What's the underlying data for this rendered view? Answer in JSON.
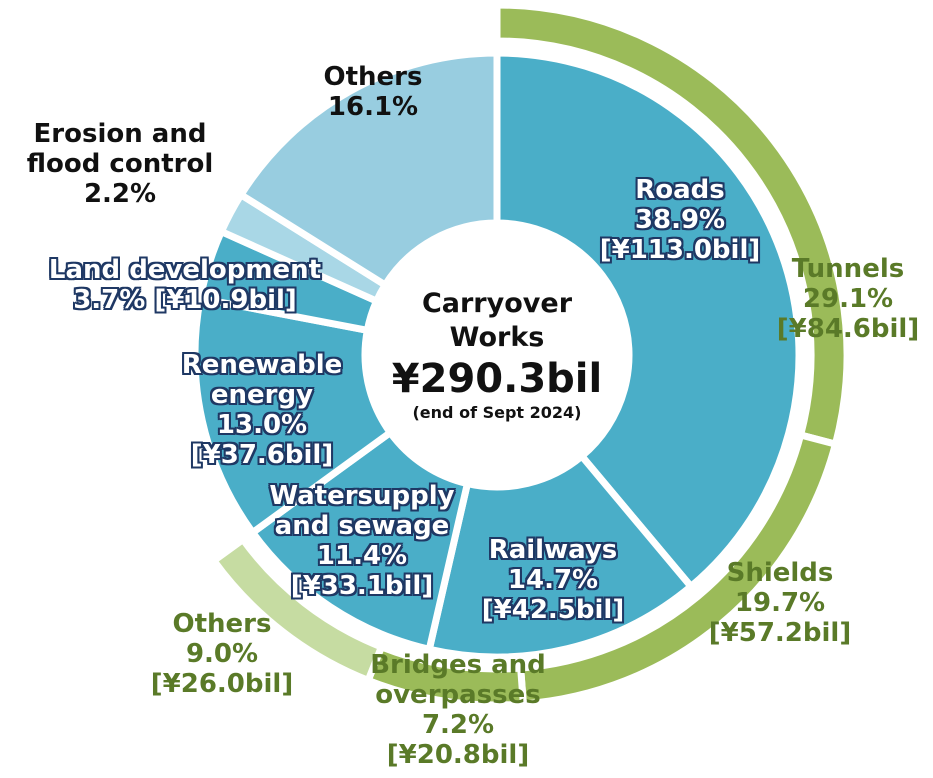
{
  "chart_data": {
    "type": "donut",
    "center_title": "Carryover Works",
    "center_value": "¥290.3bil",
    "center_note": "(end of Sept 2024)",
    "rings": [
      {
        "categories": [
          "Roads",
          "Railways",
          "Watersupply and sewage",
          "Renewable energy",
          "Land development",
          "Erosion and flood control",
          "Others"
        ],
        "values": [
          38.9,
          14.7,
          11.4,
          13.0,
          3.7,
          2.2,
          16.1
        ],
        "value_labels": [
          "38.9%",
          "14.7%",
          "11.4%",
          "13.0%",
          "3.7%",
          "2.2%",
          "16.1%"
        ],
        "amounts": [
          "[¥113.0bil]",
          "[¥42.5bil]",
          "[¥33.1bil]",
          "[¥37.6bil]",
          "[¥10.9bil]",
          null,
          null
        ],
        "colors": [
          "#4aaec8",
          "#4aaec8",
          "#4aaec8",
          "#4aaec8",
          "#4aaec8",
          "#a9d7e6",
          "#98cde0"
        ]
      },
      {
        "categories": [
          "Tunnels",
          "Shields",
          "Bridges and overpasses",
          "Others"
        ],
        "values": [
          29.1,
          19.7,
          7.2,
          9.0
        ],
        "value_labels": [
          "29.1%",
          "19.7%",
          "7.2%",
          "9.0%"
        ],
        "amounts": [
          "[¥84.6bil]",
          "[¥57.2bil]",
          "[¥20.8bil]",
          "[¥26.0bil]"
        ],
        "colors": [
          "#9bbb59",
          "#9bbb59",
          "#9bbb59",
          "#c6dca2"
        ]
      }
    ]
  }
}
